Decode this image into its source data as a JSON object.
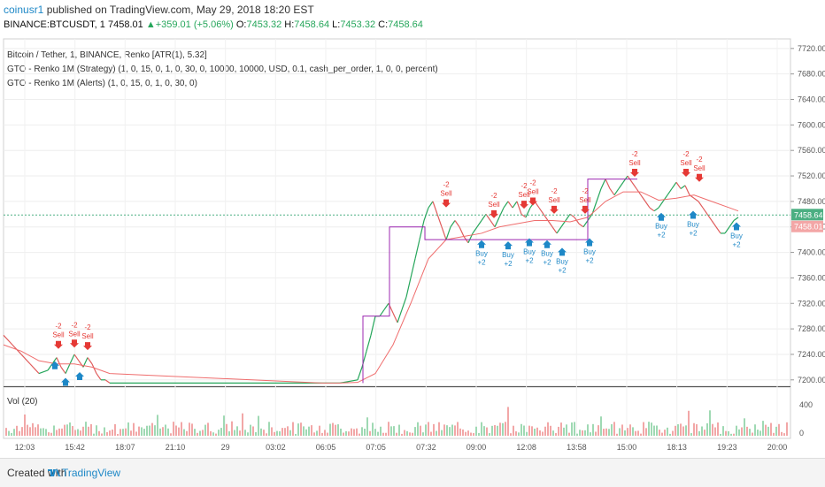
{
  "header": {
    "user": "coinusr1",
    "published": " published on TradingView.com, May 29, 2018 18:20 EST",
    "symbol": "BINANCE:BTCUSDT, 1",
    "price": "7458.01",
    "change": "+359.01 (+5.06%)",
    "o_label": "O:",
    "o_value": "7453.32",
    "h_label": "H:",
    "h_value": "7458.64",
    "l_label": "L:",
    "l_value": "7453.32",
    "c_label": "C:",
    "c_value": "7458.64"
  },
  "legend": {
    "line1": "Bitcoin / Tether, 1, BINANCE, Renko [ATR(1), 5.32]",
    "line2": "GTO - Renko 1M (Strategy) (1, 0, 15, 0, 1, 0, 30, 0, 10000, 10000, USD, 0.1, cash_per_order, 1, 0, 0, percent)",
    "line3": "GTO - Renko 1M (Alerts) (1, 0, 15, 0, 1, 0, 30, 0)",
    "vol": "Vol (20)"
  },
  "footer": {
    "created": "Created with",
    "brand": "TradingView"
  },
  "colors": {
    "up": "#26a65b",
    "down": "#e05c5c",
    "ma": "#ef6d6d",
    "purple": "#9c27b0",
    "buy": "#1e88c7",
    "sell": "#e53935",
    "current": "#4caf82"
  },
  "chart_data": {
    "type": "line",
    "title": "Bitcoin / Tether, 1, BINANCE, Renko [ATR(1), 5.32]",
    "ylim": [
      7190,
      7735
    ],
    "y_ticks": [
      "7720.00",
      "7680.00",
      "7640.00",
      "7600.00",
      "7560.00",
      "7520.00",
      "7480.00",
      "7440.00",
      "7400.00",
      "7360.00",
      "7320.00",
      "7280.00",
      "7240.00",
      "7200.00"
    ],
    "x_ticks": [
      "12:03",
      "15:42",
      "18:07",
      "21:10",
      "29",
      "03:02",
      "06:05",
      "07:05",
      "07:32",
      "09:00",
      "12:08",
      "13:58",
      "15:00",
      "18:13",
      "19:23",
      "20:00"
    ],
    "current_price_labels": [
      "7458.64",
      "7458.01"
    ],
    "vol_ticks": [
      "400",
      "0"
    ],
    "series": [
      {
        "name": "Renko",
        "x": [
          0,
          10,
          20,
          30,
          40,
          50,
          55,
          60,
          65,
          70,
          75,
          80,
          85,
          90,
          95,
          100,
          105,
          110,
          115,
          120,
          360,
          380,
          400,
          405,
          410,
          415,
          420,
          425,
          430,
          435,
          440,
          445,
          450,
          455,
          460,
          465,
          470,
          475,
          480,
          485,
          490,
          495,
          500,
          505,
          510,
          515,
          520,
          525,
          530,
          535,
          540,
          545,
          550,
          555,
          560,
          565,
          570,
          575,
          580,
          585,
          590,
          595,
          600,
          605,
          610,
          615,
          620,
          625,
          630,
          635,
          640,
          645,
          650,
          655,
          660,
          665,
          670,
          675,
          680,
          685,
          690,
          695,
          700,
          705,
          710,
          715,
          720,
          725,
          730,
          735,
          740,
          745,
          750,
          755,
          760,
          765,
          770,
          775,
          780,
          785,
          790,
          795,
          800,
          805,
          810,
          815,
          820,
          825,
          830
        ],
        "y": [
          7270,
          7255,
          7240,
          7225,
          7210,
          7215,
          7225,
          7235,
          7220,
          7210,
          7225,
          7240,
          7230,
          7220,
          7235,
          7225,
          7210,
          7200,
          7200,
          7195,
          7195,
          7195,
          7200,
          7220,
          7245,
          7270,
          7300,
          7300,
          7310,
          7320,
          7305,
          7290,
          7310,
          7330,
          7360,
          7390,
          7420,
          7450,
          7470,
          7480,
          7460,
          7440,
          7420,
          7440,
          7450,
          7440,
          7425,
          7415,
          7430,
          7440,
          7450,
          7460,
          7450,
          7440,
          7455,
          7470,
          7480,
          7470,
          7480,
          7460,
          7455,
          7470,
          7480,
          7470,
          7460,
          7450,
          7440,
          7430,
          7440,
          7450,
          7460,
          7455,
          7445,
          7440,
          7450,
          7460,
          7480,
          7500,
          7515,
          7500,
          7490,
          7500,
          7510,
          7520,
          7510,
          7500,
          7490,
          7480,
          7470,
          7465,
          7470,
          7480,
          7490,
          7500,
          7510,
          7500,
          7505,
          7490,
          7485,
          7480,
          7470,
          7460,
          7450,
          7440,
          7430,
          7430,
          7440,
          7450,
          7455
        ]
      },
      {
        "name": "MA",
        "x": [
          0,
          20,
          40,
          60,
          80,
          100,
          120,
          360,
          380,
          400,
          420,
          440,
          460,
          480,
          500,
          520,
          540,
          560,
          580,
          600,
          620,
          640,
          660,
          680,
          700,
          720,
          740,
          760,
          780,
          800,
          820,
          830
        ],
        "y": [
          7255,
          7245,
          7230,
          7225,
          7225,
          7220,
          7210,
          7195,
          7195,
          7196,
          7210,
          7255,
          7320,
          7390,
          7420,
          7425,
          7430,
          7440,
          7445,
          7450,
          7450,
          7448,
          7455,
          7480,
          7495,
          7495,
          7482,
          7485,
          7490,
          7480,
          7470,
          7465
        ]
      }
    ],
    "annotations": [
      {
        "type": "sell",
        "label": "Sell",
        "qty": "-2",
        "x": 62,
        "y": 7250
      },
      {
        "type": "sell",
        "label": "Sell",
        "qty": "-2",
        "x": 80,
        "y": 7252
      },
      {
        "type": "sell",
        "label": "Sell",
        "qty": "-2",
        "x": 95,
        "y": 7248
      },
      {
        "type": "sell",
        "label": "Sell",
        "qty": "-2",
        "x": 500,
        "y": 7472
      },
      {
        "type": "sell",
        "label": "Sell",
        "qty": "-2",
        "x": 554,
        "y": 7455
      },
      {
        "type": "sell",
        "label": "Sell",
        "qty": "-2",
        "x": 588,
        "y": 7470
      },
      {
        "type": "sell",
        "label": "Sell",
        "qty": "-2",
        "x": 598,
        "y": 7475
      },
      {
        "type": "sell",
        "label": "Sell",
        "qty": "-2",
        "x": 622,
        "y": 7462
      },
      {
        "type": "sell",
        "label": "Sell",
        "qty": "-2",
        "x": 657,
        "y": 7462
      },
      {
        "type": "sell",
        "label": "Sell",
        "qty": "-2",
        "x": 713,
        "y": 7520
      },
      {
        "type": "sell",
        "label": "Sell",
        "qty": "-2",
        "x": 771,
        "y": 7520
      },
      {
        "type": "sell",
        "label": "Sell",
        "qty": "-2",
        "x": 786,
        "y": 7512
      },
      {
        "type": "buy",
        "label": "Buy",
        "qty": "+2",
        "x": 540,
        "y": 7422
      },
      {
        "type": "buy",
        "label": "Buy",
        "qty": "+2",
        "x": 570,
        "y": 7420
      },
      {
        "type": "buy",
        "label": "Buy",
        "qty": "+2",
        "x": 594,
        "y": 7425
      },
      {
        "type": "buy",
        "label": "Buy",
        "qty": "+2",
        "x": 614,
        "y": 7422
      },
      {
        "type": "buy",
        "label": "Buy",
        "qty": "+2",
        "x": 631,
        "y": 7410
      },
      {
        "type": "buy",
        "label": "Buy",
        "qty": "+2",
        "x": 662,
        "y": 7425
      },
      {
        "type": "buy",
        "label": "Buy",
        "qty": "+2",
        "x": 743,
        "y": 7465
      },
      {
        "type": "buy",
        "label": "Buy",
        "qty": "+2",
        "x": 779,
        "y": 7468
      },
      {
        "type": "buy",
        "label": "Buy",
        "qty": "+2",
        "x": 828,
        "y": 7450
      },
      {
        "type": "buy",
        "label": "",
        "qty": "",
        "x": 58,
        "y": 7232
      },
      {
        "type": "buy",
        "label": "",
        "qty": "",
        "x": 86,
        "y": 7215
      },
      {
        "type": "buy",
        "label": "",
        "qty": "",
        "x": 70,
        "y": 7206
      }
    ]
  }
}
